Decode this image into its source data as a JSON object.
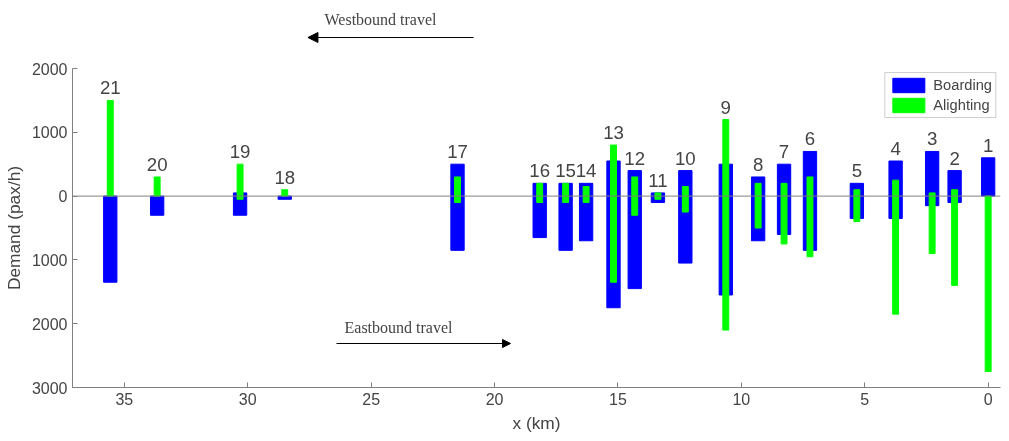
{
  "chart_data": {
    "type": "bar",
    "xlabel": "x (km)",
    "ylabel": "Demand (pax/h)",
    "x": [
      35.57,
      33.67,
      30.31,
      28.5,
      21.5,
      18.17,
      17.12,
      16.29,
      15.18,
      14.32,
      13.38,
      12.27,
      10.63,
      9.32,
      8.27,
      7.22,
      5.32,
      3.75,
      2.27,
      1.36,
      0
    ],
    "series": [
      {
        "name": "Boarding",
        "color": "#0000ff",
        "base": [
          -1350,
          -300,
          -300,
          -50,
          -850,
          -650,
          -850,
          -700,
          -1750,
          -1450,
          -100,
          -1050,
          -1550,
          -700,
          -600,
          -850,
          -350,
          -350,
          -150,
          -100,
          0
        ],
        "values": [
          1350,
          300,
          350,
          50,
          1350,
          850,
          1050,
          900,
          2300,
          1850,
          150,
          1450,
          2050,
          1000,
          1100,
          1550,
          550,
          900,
          850,
          500,
          600
        ]
      },
      {
        "name": "Alighting",
        "color": "#00ff00",
        "base": [
          0,
          0,
          -50,
          0,
          -100,
          -100,
          -100,
          -100,
          -1350,
          -300,
          -50,
          -250,
          -2100,
          -500,
          -750,
          -950,
          -400,
          -1850,
          -900,
          -1400,
          -2750
        ],
        "values": [
          1500,
          300,
          550,
          100,
          400,
          300,
          300,
          250,
          2150,
          600,
          100,
          400,
          3300,
          700,
          950,
          1250,
          500,
          2100,
          950,
          1500,
          2750
        ]
      }
    ],
    "xlim": [
      37.1,
      -0.5
    ],
    "xticks": [
      35,
      30,
      25,
      20,
      15,
      10,
      5,
      0
    ],
    "ylim": [
      -3000,
      2000
    ],
    "yticks": [
      {
        "value": -3000,
        "label": "3000"
      },
      {
        "value": -2000,
        "label": "2000"
      },
      {
        "value": -1000,
        "label": "1000"
      },
      0,
      1000,
      2000
    ],
    "ref_lines": [
      {
        "axis": "y",
        "value": 0,
        "color": "#808080"
      }
    ],
    "annotations": [
      "Westbound travel",
      "Eastbound travel",
      {
        "text": "21",
        "x": 35.57,
        "y": 1500
      },
      {
        "text": "20",
        "x": 33.67,
        "y": 300
      },
      {
        "text": "19",
        "x": 30.31,
        "y": 500
      },
      {
        "text": "18",
        "x": 28.5,
        "y": 100
      },
      {
        "text": "17",
        "x": 21.5,
        "y": 500
      },
      {
        "text": "16",
        "x": 18.17,
        "y": 200
      },
      {
        "text": "15",
        "x": 17.12,
        "y": 200
      },
      {
        "text": "14",
        "x": 16.29,
        "y": 200
      },
      {
        "text": "13",
        "x": 15.18,
        "y": 800
      },
      {
        "text": "12",
        "x": 14.32,
        "y": 400
      },
      {
        "text": "11",
        "x": 13.38,
        "y": 50
      },
      {
        "text": "10",
        "x": 12.27,
        "y": 400
      },
      {
        "text": "9",
        "x": 10.63,
        "y": 1200
      },
      {
        "text": "8",
        "x": 9.32,
        "y": 300
      },
      {
        "text": "7",
        "x": 8.27,
        "y": 500
      },
      {
        "text": "6",
        "x": 7.22,
        "y": 700
      },
      {
        "text": "5",
        "x": 5.32,
        "y": 200
      },
      {
        "text": "4",
        "x": 3.75,
        "y": 550
      },
      {
        "text": "3",
        "x": 2.27,
        "y": 700
      },
      {
        "text": "2",
        "x": 1.36,
        "y": 400
      },
      {
        "text": "1",
        "x": 0,
        "y": 600
      }
    ],
    "grid": false,
    "legend": "top right"
  }
}
